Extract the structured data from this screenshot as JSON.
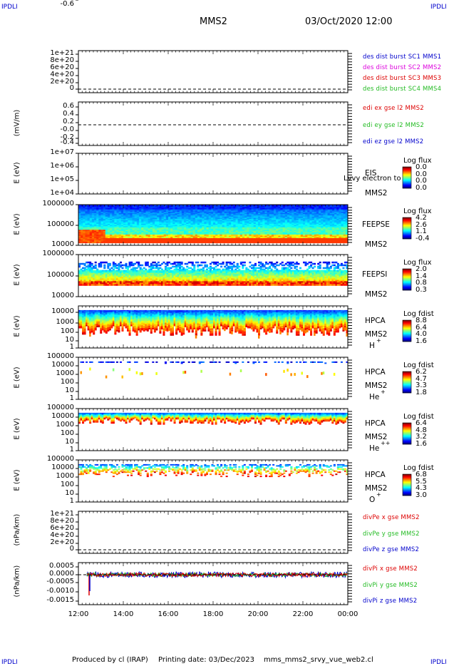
{
  "header": {
    "corner_left": "IPDLI",
    "corner_right": "IPDLI",
    "spacecraft": "MMS2",
    "date": "03/Oct/2020 12:00"
  },
  "footer": {
    "produced": "Produced by cl (IRAP)",
    "printing": "Printing date: 03/Dec/2023",
    "file": "mms_mms2_srvy_vue_web2.cl",
    "corner_left": "IPDLI",
    "corner_right": "IPDLI"
  },
  "colors": {
    "blue": "#0000cc",
    "red": "#dd0000",
    "green": "#22bb22",
    "magenta": "#dd00dd"
  },
  "chart_data": [
    {
      "id": "p1",
      "type": "line",
      "ylabel": "",
      "ticks": [
        "1e+21",
        "8e+20",
        "6e+20",
        "4e+20",
        "2e+20",
        "0"
      ],
      "legend": [
        {
          "text": "des dist burst SC1 MMS1",
          "color": "#0000cc"
        },
        {
          "text": "des dist burst SC2 MMS2",
          "color": "#dd00dd"
        },
        {
          "text": "des dist burst SC3 MMS3",
          "color": "#dd0000"
        },
        {
          "text": "des dist burst SC4 MMS4",
          "color": "#22bb22"
        }
      ]
    },
    {
      "id": "p2",
      "type": "line",
      "ylabel": "(mV/m)",
      "ticks": [
        "0.6",
        "0.4",
        "0.2",
        "-0.0",
        "-0.2",
        "-0.4",
        "-0.6"
      ],
      "legend": [
        {
          "text": "edi ex gse l2 MMS2",
          "color": "#dd0000"
        },
        {
          "text": "edi ey gse l2 MMS2",
          "color": "#22bb22"
        },
        {
          "text": "edi ez gse l2 MMS2",
          "color": "#0000cc"
        }
      ]
    },
    {
      "id": "p3",
      "type": "heatmap",
      "ylabel": "E (eV)",
      "ticks": [
        "1e+07",
        "1e+06",
        "1e+05",
        "1e+04"
      ],
      "inst": [
        "EIS",
        "MMS2"
      ],
      "overlay": "Lvvy electron to",
      "cb_title": "Log flux",
      "cb_values": [
        "0.0",
        "0.0",
        "0.0",
        "0.0"
      ]
    },
    {
      "id": "p4",
      "type": "heatmap",
      "ylabel": "E (eV)",
      "ticks": [
        "1000000",
        "100000",
        "10000"
      ],
      "inst": [
        "FEEPSE",
        "MMS2"
      ],
      "cb_title": "Log flux",
      "cb_values": [
        "4.2",
        "2.6",
        "1.1",
        "-0.4"
      ]
    },
    {
      "id": "p5",
      "type": "heatmap",
      "ylabel": "E (eV)",
      "ticks": [
        "1000000",
        "100000",
        "10000"
      ],
      "inst": [
        "FEEPSI",
        "MMS2"
      ],
      "cb_title": "Log flux",
      "cb_values": [
        "2.0",
        "1.4",
        "0.8",
        "0.3"
      ]
    },
    {
      "id": "p6",
      "type": "heatmap",
      "ylabel": "E (eV)",
      "ticks": [
        "10000",
        "1000",
        "100",
        "10",
        "1"
      ],
      "inst": [
        "HPCA",
        "MMS2"
      ],
      "species": "H",
      "charge": "+",
      "cb_title": "Log fdist",
      "cb_values": [
        "8.8",
        "6.4",
        "4.0",
        "1.6"
      ]
    },
    {
      "id": "p7",
      "type": "heatmap",
      "ylabel": "E (eV)",
      "ticks": [
        "100000",
        "10000",
        "1000",
        "100",
        "10",
        "1"
      ],
      "inst": [
        "HPCA",
        "MMS2"
      ],
      "species": "He",
      "charge": "+",
      "cb_title": "Log fdist",
      "cb_values": [
        "6.2",
        "4.7",
        "3.3",
        "1.8"
      ]
    },
    {
      "id": "p8",
      "type": "heatmap",
      "ylabel": "E (eV)",
      "ticks": [
        "100000",
        "10000",
        "1000",
        "100",
        "10",
        "1"
      ],
      "inst": [
        "HPCA",
        "MMS2"
      ],
      "species": "He",
      "charge": "++",
      "cb_title": "Log fdist",
      "cb_values": [
        "6.4",
        "4.8",
        "3.2",
        "1.6"
      ]
    },
    {
      "id": "p9",
      "type": "heatmap",
      "ylabel": "E (eV)",
      "ticks": [
        "100000",
        "10000",
        "1000",
        "100",
        "10",
        "1"
      ],
      "inst": [
        "HPCA",
        "MMS2"
      ],
      "species": "O",
      "charge": "+",
      "cb_title": "Log fdist",
      "cb_values": [
        "6.8",
        "5.5",
        "4.3",
        "3.0"
      ]
    },
    {
      "id": "p10",
      "type": "line",
      "ylabel": "(nPa/km)",
      "ticks": [
        "1e+21",
        "8e+20",
        "6e+20",
        "4e+20",
        "2e+20",
        "0"
      ],
      "legend": [
        {
          "text": "divPe x gse MMS2",
          "color": "#dd0000"
        },
        {
          "text": "divPe y gse MMS2",
          "color": "#22bb22"
        },
        {
          "text": "divPe z gse MMS2",
          "color": "#0000cc"
        }
      ]
    },
    {
      "id": "p11",
      "type": "line",
      "ylabel": "(nPa/km)",
      "ticks": [
        "0.0005",
        "0.0000",
        "-0.0005",
        "-0.0010",
        "-0.0015"
      ],
      "legend": [
        {
          "text": "divPi x gse MMS2",
          "color": "#dd0000"
        },
        {
          "text": "divPi y gse MMS2",
          "color": "#22bb22"
        },
        {
          "text": "divPi z gse MMS2",
          "color": "#0000cc"
        }
      ]
    }
  ],
  "x_axis": {
    "ticks": [
      "12:00",
      "14:00",
      "16:00",
      "18:00",
      "20:00",
      "22:00",
      "00:00"
    ],
    "range": [
      "03/Oct/2020 12:00",
      "04/Oct/2020 00:00"
    ]
  }
}
